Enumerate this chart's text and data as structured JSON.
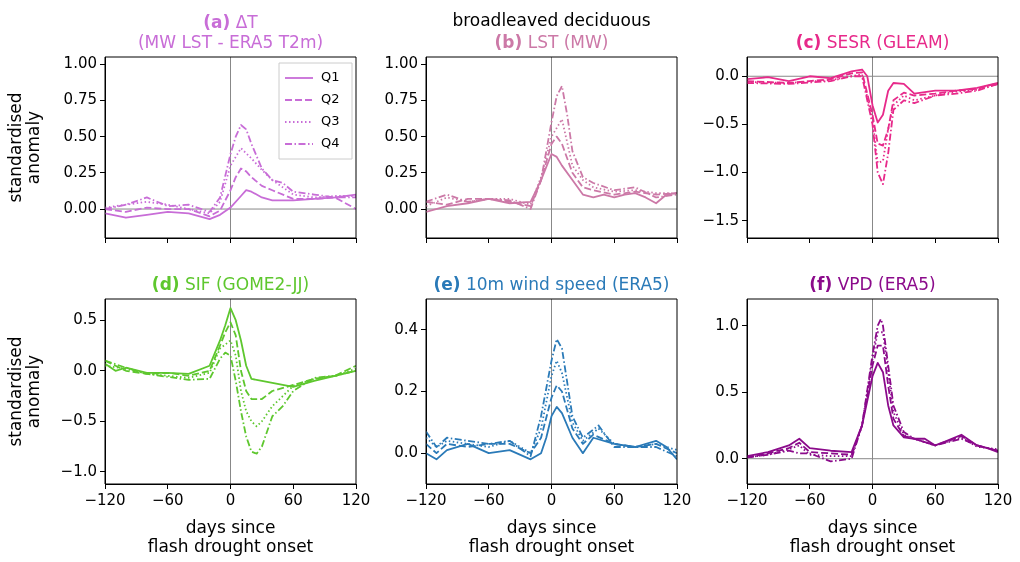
{
  "chart_data": [
    {
      "type": "line",
      "title": "(a) ΔT",
      "subtitle": "(MW LST - ERA5 T2m)",
      "ylabel": "standardised\nanomaly",
      "xlim": [
        -120,
        120
      ],
      "xticks": [
        {
          "value": -120,
          "label": null
        },
        {
          "value": -60,
          "label": null
        },
        {
          "value": 0,
          "label": null
        },
        {
          "value": 60,
          "label": null
        },
        {
          "value": 120,
          "label": null
        }
      ],
      "ylim": [
        -0.2,
        1.05
      ],
      "yticks": [
        {
          "value": 0,
          "label": "0.00"
        },
        {
          "value": 0.25,
          "label": "0.25"
        },
        {
          "value": 0.5,
          "label": "0.50"
        },
        {
          "value": 0.75,
          "label": "0.75"
        },
        {
          "value": 1,
          "label": "1.00"
        }
      ],
      "tick_labels": "y",
      "legend": "top right",
      "ref_lines": [
        {
          "axis": "x",
          "value": 0,
          "color": "#888888"
        },
        {
          "axis": "y",
          "value": 0,
          "color": "#888888"
        }
      ],
      "series": [
        {
          "name": "Q1",
          "color": "#c86dd7",
          "line_style": "solid",
          "x": [
            -120,
            -100,
            -80,
            -60,
            -40,
            -20,
            -10,
            0,
            10,
            15,
            20,
            30,
            40,
            60,
            80,
            100,
            120
          ],
          "values": [
            -0.03,
            -0.06,
            -0.04,
            -0.02,
            -0.03,
            -0.07,
            -0.04,
            0.01,
            0.09,
            0.13,
            0.12,
            0.08,
            0.06,
            0.06,
            0.07,
            0.08,
            0.1
          ]
        },
        {
          "name": "Q2",
          "color": "#c86dd7",
          "line_style": "dashed",
          "x": [
            -120,
            -100,
            -80,
            -60,
            -40,
            -20,
            -10,
            0,
            5,
            10,
            15,
            20,
            30,
            40,
            60,
            80,
            100,
            120
          ],
          "values": [
            0,
            -0.02,
            0.01,
            0,
            0,
            -0.05,
            -0.01,
            0.13,
            0.22,
            0.28,
            0.26,
            0.22,
            0.16,
            0.13,
            0.07,
            0.07,
            0.08,
            0
          ]
        },
        {
          "name": "Q3",
          "color": "#c86dd7",
          "line_style": "dotted",
          "x": [
            -120,
            -100,
            -80,
            -60,
            -40,
            -20,
            -10,
            0,
            10,
            20,
            30,
            40,
            60,
            80,
            100,
            120
          ],
          "values": [
            0.01,
            0.03,
            0.05,
            0.03,
            0,
            -0.03,
            0.05,
            0.3,
            0.42,
            0.35,
            0.27,
            0.2,
            0.1,
            0.08,
            0.09,
            0.09
          ]
        },
        {
          "name": "Q4",
          "color": "#c86dd7",
          "line_style": "dashdot",
          "x": [
            -120,
            -100,
            -80,
            -60,
            -40,
            -20,
            -10,
            0,
            5,
            10,
            15,
            20,
            30,
            40,
            50,
            60,
            80,
            100,
            120
          ],
          "values": [
            0,
            0.03,
            0.08,
            0.02,
            0.03,
            -0.02,
            0.08,
            0.38,
            0.5,
            0.58,
            0.55,
            0.45,
            0.28,
            0.2,
            0.18,
            0.12,
            0.1,
            0.08,
            0.08
          ]
        }
      ]
    },
    {
      "type": "line",
      "title": "(b) LST",
      "subtitle": "(MW)",
      "annotations": [
        "broadleaved deciduous"
      ],
      "xlim": [
        -120,
        120
      ],
      "xticks": [
        {
          "value": -120,
          "label": null
        },
        {
          "value": -60,
          "label": null
        },
        {
          "value": 0,
          "label": null
        },
        {
          "value": 60,
          "label": null
        },
        {
          "value": 120,
          "label": null
        }
      ],
      "ylim": [
        -0.2,
        1.05
      ],
      "yticks": [
        {
          "value": 0,
          "label": "0.00"
        },
        {
          "value": 0.25,
          "label": "0.25"
        },
        {
          "value": 0.5,
          "label": "0.50"
        },
        {
          "value": 0.75,
          "label": "0.75"
        },
        {
          "value": 1,
          "label": "1.00"
        }
      ],
      "tick_labels": "y",
      "ref_lines": [
        {
          "axis": "x",
          "value": 0,
          "color": "#888888"
        },
        {
          "axis": "y",
          "value": 0,
          "color": "#888888"
        }
      ],
      "series": [
        {
          "color": "#cc79a7",
          "line_style": "solid",
          "x": [
            -120,
            -100,
            -80,
            -60,
            -40,
            -20,
            -10,
            0,
            5,
            10,
            20,
            30,
            40,
            50,
            60,
            70,
            80,
            90,
            100,
            110,
            120
          ],
          "values": [
            -0.02,
            0.02,
            0.04,
            0.07,
            0.04,
            0.05,
            0.2,
            0.38,
            0.36,
            0.3,
            0.2,
            0.1,
            0.08,
            0.1,
            0.08,
            0.1,
            0.11,
            0.08,
            0.04,
            0.1,
            0.11
          ]
        },
        {
          "color": "#cc79a7",
          "line_style": "dashed",
          "x": [
            -120,
            -100,
            -80,
            -60,
            -40,
            -20,
            -10,
            0,
            5,
            10,
            20,
            30,
            40,
            60,
            80,
            100,
            120
          ],
          "values": [
            0.05,
            0.03,
            0.07,
            0.07,
            0.05,
            0.02,
            0.2,
            0.45,
            0.5,
            0.45,
            0.25,
            0.15,
            0.13,
            0.1,
            0.12,
            0.1,
            0.11
          ]
        },
        {
          "color": "#cc79a7",
          "line_style": "dotted",
          "x": [
            -120,
            -100,
            -80,
            -60,
            -40,
            -20,
            -10,
            0,
            10,
            20,
            30,
            40,
            60,
            80,
            100,
            120
          ],
          "values": [
            0.02,
            0.08,
            0.05,
            0.07,
            0.07,
            0.03,
            0.22,
            0.5,
            0.62,
            0.3,
            0.2,
            0.15,
            0.12,
            0.13,
            0.11,
            0.11
          ]
        },
        {
          "color": "#cc79a7",
          "line_style": "dashdot",
          "x": [
            -120,
            -100,
            -80,
            -60,
            -40,
            -20,
            -10,
            0,
            5,
            10,
            15,
            20,
            30,
            40,
            60,
            80,
            100,
            120
          ],
          "values": [
            0.05,
            0.1,
            0.05,
            0.07,
            0.06,
            0,
            0.2,
            0.6,
            0.78,
            0.85,
            0.65,
            0.4,
            0.22,
            0.18,
            0.13,
            0.15,
            0.08,
            0.1
          ]
        }
      ]
    },
    {
      "type": "line",
      "title": "(c) SESR",
      "subtitle": "(GLEAM)",
      "xlim": [
        -120,
        120
      ],
      "xticks": [
        {
          "value": -120,
          "label": null
        },
        {
          "value": -60,
          "label": null
        },
        {
          "value": 0,
          "label": null
        },
        {
          "value": 60,
          "label": null
        },
        {
          "value": 120,
          "label": null
        }
      ],
      "ylim": [
        -1.68,
        0.2
      ],
      "yticks": [
        {
          "value": -1.5,
          "label": "−1.5"
        },
        {
          "value": -1,
          "label": "−1.0"
        },
        {
          "value": -0.5,
          "label": "−0.5"
        },
        {
          "value": 0,
          "label": "0.0"
        }
      ],
      "tick_labels": "y",
      "ref_lines": [
        {
          "axis": "x",
          "value": 0,
          "color": "#888888"
        },
        {
          "axis": "y",
          "value": 0,
          "color": "#888888"
        }
      ],
      "series": [
        {
          "color": "#e7298a",
          "line_style": "solid",
          "x": [
            -120,
            -100,
            -80,
            -60,
            -40,
            -20,
            -10,
            -5,
            0,
            5,
            10,
            15,
            20,
            30,
            40,
            60,
            80,
            100,
            120
          ],
          "values": [
            -0.03,
            -0.01,
            -0.05,
            0,
            -0.02,
            0.05,
            0.07,
            0,
            -0.3,
            -0.48,
            -0.4,
            -0.15,
            -0.07,
            -0.08,
            -0.18,
            -0.15,
            -0.15,
            -0.12,
            -0.07
          ]
        },
        {
          "color": "#e7298a",
          "line_style": "dashed",
          "x": [
            -120,
            -80,
            -40,
            -20,
            -10,
            0,
            5,
            10,
            15,
            20,
            30,
            40,
            60,
            80,
            100,
            120
          ],
          "values": [
            -0.05,
            -0.07,
            -0.03,
            0.03,
            0.04,
            -0.4,
            -0.7,
            -0.72,
            -0.55,
            -0.25,
            -0.17,
            -0.2,
            -0.18,
            -0.15,
            -0.13,
            -0.07
          ]
        },
        {
          "color": "#e7298a",
          "line_style": "dotted",
          "x": [
            -120,
            -80,
            -40,
            -20,
            -10,
            0,
            5,
            10,
            15,
            20,
            30,
            40,
            60,
            80,
            100,
            120
          ],
          "values": [
            -0.06,
            -0.07,
            -0.04,
            0,
            0.02,
            -0.45,
            -0.9,
            -0.88,
            -0.55,
            -0.3,
            -0.2,
            -0.25,
            -0.2,
            -0.16,
            -0.14,
            -0.08
          ]
        },
        {
          "color": "#e7298a",
          "line_style": "dashdot",
          "x": [
            -120,
            -80,
            -40,
            -20,
            -10,
            0,
            5,
            10,
            15,
            20,
            30,
            40,
            60,
            80,
            100,
            120
          ],
          "values": [
            -0.07,
            -0.08,
            -0.05,
            0,
            0,
            -0.5,
            -1,
            -1.12,
            -0.8,
            -0.35,
            -0.25,
            -0.28,
            -0.2,
            -0.18,
            -0.15,
            -0.08
          ]
        }
      ]
    },
    {
      "type": "line",
      "title": "(d) SIF",
      "subtitle": "(GOME2-JJ)",
      "ylabel": "standardised\nanomaly",
      "xlabel": "days since\nflash drought onset",
      "xlim": [
        -120,
        120
      ],
      "xticks": [
        {
          "value": -120,
          "label": "−120"
        },
        {
          "value": -60,
          "label": "−60"
        },
        0,
        60,
        120
      ],
      "ylim": [
        -1.12,
        0.71
      ],
      "yticks": [
        {
          "value": -1,
          "label": "−1.0"
        },
        {
          "value": -0.5,
          "label": "−0.5"
        },
        {
          "value": 0,
          "label": "0.0"
        },
        {
          "value": 0.5,
          "label": "0.5"
        }
      ],
      "ref_lines": [
        {
          "axis": "x",
          "value": 0,
          "color": "#888888"
        }
      ],
      "series": [
        {
          "color": "#5ec72e",
          "line_style": "solid",
          "x": [
            -120,
            -110,
            -100,
            -80,
            -60,
            -40,
            -20,
            -10,
            -5,
            0,
            5,
            10,
            15,
            20,
            30,
            40,
            60,
            80,
            100,
            120
          ],
          "values": [
            0.07,
            0,
            0.03,
            -0.02,
            -0.02,
            -0.03,
            0.05,
            0.3,
            0.45,
            0.62,
            0.5,
            0.3,
            0.05,
            -0.08,
            -0.1,
            -0.12,
            -0.16,
            -0.1,
            -0.05,
            0
          ]
        },
        {
          "color": "#5ec72e",
          "line_style": "dashed",
          "x": [
            -120,
            -100,
            -80,
            -60,
            -40,
            -20,
            -10,
            -5,
            0,
            5,
            10,
            15,
            20,
            30,
            40,
            60,
            80,
            100,
            120
          ],
          "values": [
            0.1,
            0,
            -0.03,
            -0.02,
            -0.05,
            0,
            0.25,
            0.38,
            0.48,
            0.35,
            0,
            -0.2,
            -0.28,
            -0.28,
            -0.2,
            -0.14,
            -0.08,
            -0.05,
            0.05
          ]
        },
        {
          "color": "#5ec72e",
          "line_style": "dotted",
          "x": [
            -120,
            -100,
            -80,
            -40,
            -20,
            -10,
            0,
            5,
            10,
            15,
            20,
            25,
            30,
            40,
            60,
            80,
            100,
            120
          ],
          "values": [
            0.05,
            0.02,
            -0.03,
            -0.07,
            -0.02,
            0.22,
            0.3,
            0.15,
            -0.2,
            -0.4,
            -0.5,
            -0.55,
            -0.5,
            -0.35,
            -0.15,
            -0.08,
            -0.05,
            0.02
          ]
        },
        {
          "color": "#5ec72e",
          "line_style": "dashdot",
          "x": [
            -120,
            -100,
            -80,
            -40,
            -20,
            -10,
            -5,
            0,
            5,
            10,
            15,
            20,
            25,
            30,
            40,
            50,
            60,
            80,
            100,
            120
          ],
          "values": [
            0.1,
            0.03,
            -0.03,
            -0.09,
            -0.08,
            0.12,
            0.18,
            0.15,
            -0.1,
            -0.4,
            -0.65,
            -0.8,
            -0.82,
            -0.75,
            -0.45,
            -0.35,
            -0.2,
            -0.07,
            -0.05,
            0
          ]
        }
      ]
    },
    {
      "type": "line",
      "title": "(e) 10m wind speed",
      "subtitle": "(ERA5)",
      "xlabel": "days since\nflash drought onset",
      "xlim": [
        -120,
        120
      ],
      "xticks": [
        {
          "value": -120,
          "label": "−120"
        },
        {
          "value": -60,
          "label": "−60"
        },
        0,
        60,
        120
      ],
      "ylim": [
        -0.1,
        0.5
      ],
      "yticks": [
        {
          "value": 0,
          "label": "0.0"
        },
        {
          "value": 0.2,
          "label": "0.2"
        },
        {
          "value": 0.4,
          "label": "0.4"
        }
      ],
      "ref_lines": [
        {
          "axis": "x",
          "value": 0,
          "color": "#888888"
        }
      ],
      "series": [
        {
          "color": "#2a7ab8",
          "line_style": "solid",
          "x": [
            -120,
            -110,
            -100,
            -80,
            -60,
            -40,
            -20,
            -10,
            -5,
            0,
            5,
            10,
            20,
            30,
            40,
            60,
            80,
            100,
            110,
            120
          ],
          "values": [
            0,
            -0.02,
            0.01,
            0.03,
            0,
            0.01,
            -0.02,
            0,
            0.05,
            0.12,
            0.15,
            0.13,
            0.05,
            0,
            0.05,
            0.03,
            0.02,
            0.04,
            0.02,
            -0.02
          ]
        },
        {
          "color": "#2a7ab8",
          "line_style": "dashed",
          "x": [
            -120,
            -110,
            -100,
            -80,
            -60,
            -40,
            -20,
            -10,
            0,
            5,
            10,
            20,
            30,
            40,
            60,
            80,
            100,
            120
          ],
          "values": [
            0.03,
            0,
            0.03,
            0.02,
            0.03,
            0.03,
            0,
            0.05,
            0.18,
            0.22,
            0.2,
            0.08,
            0.03,
            0.06,
            0.03,
            0.02,
            0.03,
            0
          ]
        },
        {
          "color": "#2a7ab8",
          "line_style": "dotted",
          "x": [
            -120,
            -110,
            -100,
            -80,
            -60,
            -40,
            -20,
            -10,
            0,
            5,
            10,
            20,
            30,
            45,
            60,
            80,
            100,
            120
          ],
          "values": [
            0.05,
            0.02,
            0.04,
            0.03,
            0.02,
            0.04,
            0,
            0.08,
            0.25,
            0.3,
            0.26,
            0.1,
            0.04,
            0.08,
            0.03,
            0.02,
            0.03,
            0.01
          ]
        },
        {
          "color": "#2a7ab8",
          "line_style": "dashdot",
          "x": [
            -120,
            -110,
            -100,
            -80,
            -60,
            -40,
            -20,
            -10,
            0,
            5,
            10,
            20,
            30,
            45,
            60,
            80,
            100,
            120
          ],
          "values": [
            0.07,
            0.02,
            0.05,
            0.04,
            0.03,
            0.04,
            -0.01,
            0.12,
            0.3,
            0.37,
            0.34,
            0.12,
            0.05,
            0.09,
            0.02,
            0.02,
            0.02,
            -0.01
          ]
        }
      ]
    },
    {
      "type": "line",
      "title": "(f) VPD",
      "subtitle": "(ERA5)",
      "xlabel": "days since\nflash drought onset",
      "xlim": [
        -120,
        120
      ],
      "xticks": [
        {
          "value": -120,
          "label": "−120"
        },
        {
          "value": -60,
          "label": "−60"
        },
        0,
        60,
        120
      ],
      "ylim": [
        -0.19,
        1.2
      ],
      "yticks": [
        {
          "value": 0,
          "label": "0.0"
        },
        {
          "value": 0.5,
          "label": "0.5"
        },
        {
          "value": 1,
          "label": "1.0"
        }
      ],
      "ref_lines": [
        {
          "axis": "x",
          "value": 0,
          "color": "#888888"
        },
        {
          "axis": "y",
          "value": 0,
          "color": "#888888"
        }
      ],
      "series": [
        {
          "color": "#8b0a8b",
          "line_style": "solid",
          "x": [
            -120,
            -100,
            -80,
            -70,
            -60,
            -40,
            -20,
            -10,
            0,
            5,
            10,
            15,
            20,
            30,
            40,
            50,
            60,
            70,
            85,
            100,
            110,
            120
          ],
          "values": [
            0.02,
            0.05,
            0.1,
            0.15,
            0.08,
            0.06,
            0.05,
            0.25,
            0.62,
            0.72,
            0.65,
            0.4,
            0.25,
            0.16,
            0.15,
            0.15,
            0.1,
            0.13,
            0.18,
            0.1,
            0.08,
            0.05
          ]
        },
        {
          "color": "#8b0a8b",
          "line_style": "dashed",
          "x": [
            -120,
            -100,
            -80,
            -70,
            -60,
            -40,
            -20,
            -10,
            0,
            5,
            10,
            15,
            20,
            30,
            40,
            60,
            85,
            100,
            120
          ],
          "values": [
            0.01,
            0.04,
            0.08,
            0.12,
            0.05,
            0.04,
            0.03,
            0.25,
            0.7,
            0.85,
            0.85,
            0.55,
            0.3,
            0.17,
            0.15,
            0.1,
            0.17,
            0.1,
            0.06
          ]
        },
        {
          "color": "#8b0a8b",
          "line_style": "dotted",
          "x": [
            -120,
            -100,
            -80,
            -70,
            -60,
            -40,
            -20,
            -10,
            0,
            5,
            10,
            15,
            20,
            30,
            40,
            60,
            85,
            100,
            120
          ],
          "values": [
            0.01,
            0.03,
            0.07,
            0.1,
            0.03,
            0.02,
            0.02,
            0.25,
            0.75,
            0.95,
            0.95,
            0.65,
            0.35,
            0.18,
            0.15,
            0.1,
            0.16,
            0.09,
            0.07
          ]
        },
        {
          "color": "#8b0a8b",
          "line_style": "dashdot",
          "x": [
            -120,
            -100,
            -80,
            -70,
            -60,
            -40,
            -20,
            -10,
            0,
            5,
            8,
            10,
            15,
            20,
            30,
            40,
            60,
            85,
            100,
            120
          ],
          "values": [
            0.01,
            0.03,
            0.06,
            0.04,
            0.04,
            -0.02,
            0,
            0.25,
            0.78,
            1,
            1.05,
            1,
            0.7,
            0.4,
            0.2,
            0.15,
            0.1,
            0.15,
            0.1,
            0.06
          ]
        }
      ]
    }
  ]
}
